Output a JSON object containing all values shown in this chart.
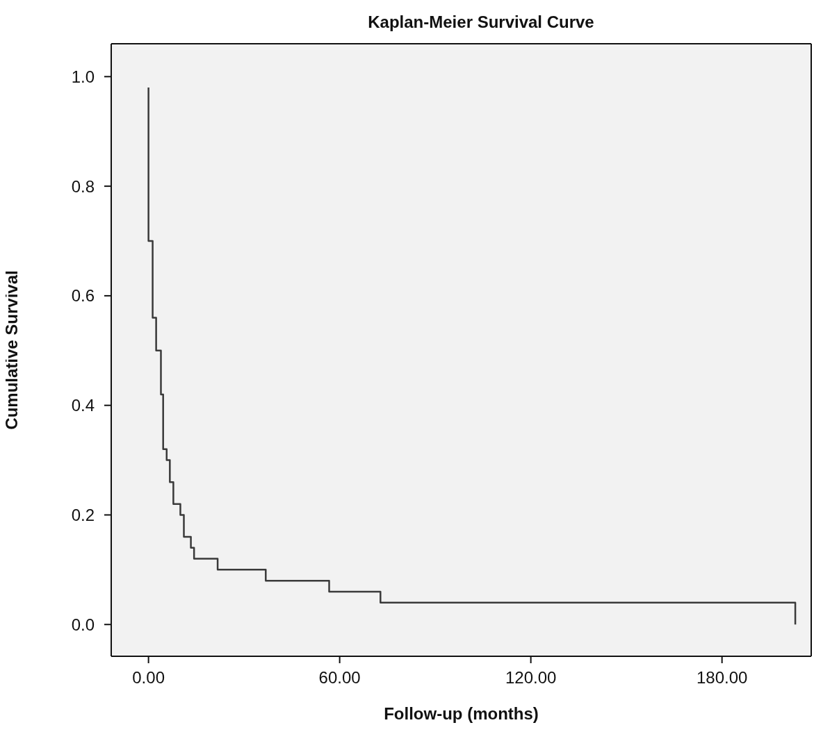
{
  "chart_data": {
    "type": "step",
    "title": "Kaplan-Meier Survival Curve",
    "xlabel": "Follow-up (months)",
    "ylabel": "Cumulative Survival",
    "x": [
      0,
      0,
      1.3,
      2.4,
      3.9,
      4.6,
      5.7,
      6.7,
      7.8,
      10,
      11.1,
      13.3,
      14.3,
      21.7,
      36.8,
      56.7,
      72.8,
      203
    ],
    "series": [
      {
        "color": "#3a3a3a",
        "values": [
          0.98,
          0.7,
          0.56,
          0.5,
          0.42,
          0.32,
          0.3,
          0.26,
          0.22,
          0.2,
          0.16,
          0.14,
          0.12,
          0.1,
          0.08,
          0.06,
          0.04,
          0.0
        ]
      }
    ],
    "xlim": [
      -11.7,
      208
    ],
    "ylim": [
      -0.058,
      1.06
    ],
    "xticks": [
      {
        "value": 0,
        "label": "0.00"
      },
      {
        "value": 60,
        "label": "60.00"
      },
      {
        "value": 120,
        "label": "120.00"
      },
      {
        "value": 180,
        "label": "180.00"
      }
    ],
    "yticks": [
      {
        "value": 0,
        "label": "0.0"
      },
      {
        "value": 0.2,
        "label": "0.2"
      },
      {
        "value": 0.4,
        "label": "0.4"
      },
      {
        "value": 0.6,
        "label": "0.6"
      },
      {
        "value": 0.8,
        "label": "0.8"
      },
      {
        "value": 1,
        "label": "1.0"
      }
    ],
    "marker": "none",
    "line_style": "solid"
  }
}
